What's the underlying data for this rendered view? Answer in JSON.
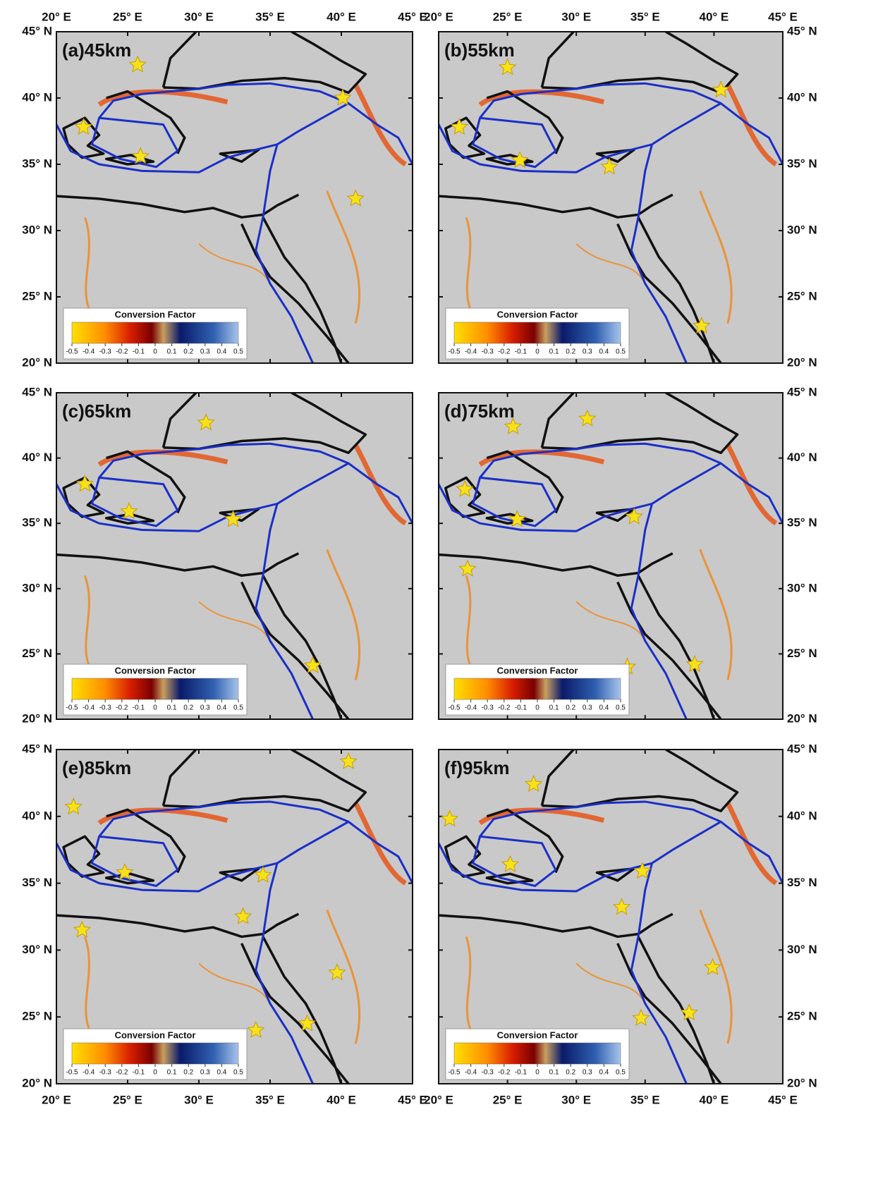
{
  "figure": {
    "xlim": [
      20,
      45
    ],
    "ylim": [
      20,
      45
    ],
    "xticks": [
      {
        "value": 20,
        "label": "20° E"
      },
      {
        "value": 25,
        "label": "25° E"
      },
      {
        "value": 30,
        "label": "30° E"
      },
      {
        "value": 35,
        "label": "35° E"
      },
      {
        "value": 40,
        "label": "40° E"
      },
      {
        "value": 45,
        "label": "45° E"
      }
    ],
    "yticks": [
      {
        "value": 45,
        "label": "45° N"
      },
      {
        "value": 40,
        "label": "40° N"
      },
      {
        "value": 35,
        "label": "35° N"
      },
      {
        "value": 30,
        "label": "30° N"
      },
      {
        "value": 25,
        "label": "25° N"
      },
      {
        "value": 20,
        "label": "20° N"
      }
    ],
    "colorbar": {
      "title": "Conversion Factor",
      "range": [
        -0.5,
        0.5
      ],
      "ticks": [
        -0.5,
        -0.4,
        -0.3,
        -0.2,
        -0.1,
        0,
        0.1,
        0.2,
        0.3,
        0.4,
        0.5
      ]
    },
    "panels": [
      {
        "label": "(a)45km",
        "stars": [
          {
            "lon": 25.7,
            "lat": 42.5
          },
          {
            "lon": 21.9,
            "lat": 37.8
          },
          {
            "lon": 25.9,
            "lat": 35.6
          },
          {
            "lon": 40.1,
            "lat": 40.0
          },
          {
            "lon": 41.0,
            "lat": 32.4
          }
        ]
      },
      {
        "label": "(b)55km",
        "stars": [
          {
            "lon": 25.0,
            "lat": 42.3
          },
          {
            "lon": 21.5,
            "lat": 37.8
          },
          {
            "lon": 25.9,
            "lat": 35.3
          },
          {
            "lon": 32.4,
            "lat": 34.8
          },
          {
            "lon": 40.5,
            "lat": 40.6
          },
          {
            "lon": 39.1,
            "lat": 22.8
          }
        ]
      },
      {
        "label": "(c)65km",
        "stars": [
          {
            "lon": 30.5,
            "lat": 42.7
          },
          {
            "lon": 22.0,
            "lat": 38.0
          },
          {
            "lon": 25.1,
            "lat": 35.9
          },
          {
            "lon": 32.4,
            "lat": 35.3
          },
          {
            "lon": 38.0,
            "lat": 24.1
          }
        ]
      },
      {
        "label": "(d)75km",
        "stars": [
          {
            "lon": 25.4,
            "lat": 42.4
          },
          {
            "lon": 30.8,
            "lat": 43.0
          },
          {
            "lon": 21.9,
            "lat": 37.6
          },
          {
            "lon": 25.7,
            "lat": 35.3
          },
          {
            "lon": 34.2,
            "lat": 35.5
          },
          {
            "lon": 22.1,
            "lat": 31.5
          },
          {
            "lon": 33.7,
            "lat": 24.0
          },
          {
            "lon": 38.6,
            "lat": 24.2
          }
        ]
      },
      {
        "label": "(e)85km",
        "stars": [
          {
            "lon": 40.5,
            "lat": 44.1
          },
          {
            "lon": 21.2,
            "lat": 40.7
          },
          {
            "lon": 24.8,
            "lat": 35.8
          },
          {
            "lon": 34.5,
            "lat": 35.6
          },
          {
            "lon": 33.1,
            "lat": 32.5
          },
          {
            "lon": 21.8,
            "lat": 31.5
          },
          {
            "lon": 39.7,
            "lat": 28.3
          },
          {
            "lon": 37.6,
            "lat": 24.5
          },
          {
            "lon": 34.0,
            "lat": 24.0
          }
        ]
      },
      {
        "label": "(f)95km",
        "stars": [
          {
            "lon": 26.9,
            "lat": 42.4
          },
          {
            "lon": 20.8,
            "lat": 39.8
          },
          {
            "lon": 25.2,
            "lat": 36.4
          },
          {
            "lon": 34.8,
            "lat": 35.9
          },
          {
            "lon": 33.3,
            "lat": 33.2
          },
          {
            "lon": 39.9,
            "lat": 28.7
          },
          {
            "lon": 34.7,
            "lat": 24.9
          },
          {
            "lon": 38.2,
            "lat": 25.3
          }
        ]
      }
    ]
  }
}
